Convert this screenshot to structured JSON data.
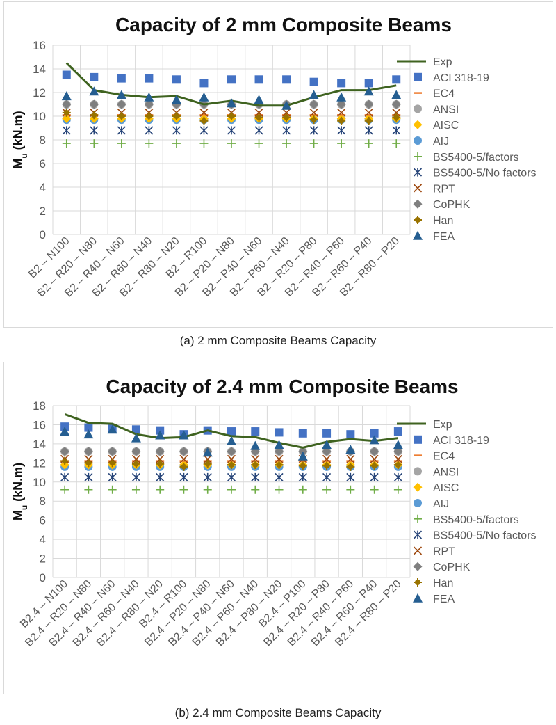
{
  "captions": {
    "a": "(a) 2 mm Composite Beams Capacity",
    "b": "(b) 2.4 mm Composite Beams Capacity"
  },
  "legend_styles": [
    {
      "name": "Exp",
      "marker": "line",
      "color": "#3f6320"
    },
    {
      "name": "ACI 318-19",
      "marker": "square",
      "color": "#4472c4"
    },
    {
      "name": "EC4",
      "marker": "dash",
      "color": "#ed7d31"
    },
    {
      "name": "ANSI",
      "marker": "circle",
      "color": "#a5a5a5"
    },
    {
      "name": "AISC",
      "marker": "diamond",
      "color": "#ffc000"
    },
    {
      "name": "AIJ",
      "marker": "circle",
      "color": "#5b9bd5"
    },
    {
      "name": "BS5400-5/factors",
      "marker": "plus",
      "color": "#70ad47"
    },
    {
      "name": "BS5400-5/No factors",
      "marker": "asterisk",
      "color": "#264478"
    },
    {
      "name": "RPT",
      "marker": "x",
      "color": "#9e480e"
    },
    {
      "name": "CoPHK",
      "marker": "diamond",
      "color": "#7f7f7f"
    },
    {
      "name": "Han",
      "marker": "plus-circle",
      "color": "#997300"
    },
    {
      "name": "FEA",
      "marker": "triangle",
      "color": "#255e91"
    }
  ],
  "chart_data": [
    {
      "type": "line",
      "title": "Capacity of 2 mm Composite Beams",
      "ylabel": "M",
      "ylabel_sub": "u",
      "ylabel_unit": " (kN.m)",
      "ylim": [
        0,
        16
      ],
      "yticks": [
        0,
        2,
        4,
        6,
        8,
        10,
        12,
        14,
        16
      ],
      "grid": true,
      "legend_position": "right",
      "categories": [
        "B2 – N100",
        "B2 – R20 – N80",
        "B2 – R40 – N60",
        "B2 – R60 – N40",
        "B2 – R80 – N20",
        "B2 – R100",
        "B2 – P20 – N80",
        "B2 – P40 – N60",
        "B2 – P60 – N40",
        "B2 – R20 – P80",
        "B2 – R40 – P60",
        "B2 – R60 – P40",
        "B2 – R80 – P20"
      ],
      "series": [
        {
          "name": "Exp",
          "values": [
            14.5,
            12.2,
            11.8,
            11.6,
            11.7,
            11.0,
            11.3,
            10.9,
            10.9,
            11.6,
            12.2,
            12.2,
            12.6
          ]
        },
        {
          "name": "ACI 318-19",
          "values": [
            13.5,
            13.3,
            13.2,
            13.2,
            13.1,
            12.8,
            13.1,
            13.1,
            13.1,
            12.9,
            12.8,
            12.8,
            13.1
          ]
        },
        {
          "name": "EC4",
          "values": [
            10.1,
            10.1,
            10.1,
            10.1,
            10.1,
            10.1,
            10.1,
            10.1,
            10.1,
            10.1,
            10.1,
            10.1,
            10.1
          ]
        },
        {
          "name": "ANSI",
          "values": [
            11.0,
            11.0,
            11.0,
            11.0,
            11.0,
            11.0,
            11.0,
            11.0,
            11.0,
            11.0,
            11.0,
            11.0,
            11.0
          ]
        },
        {
          "name": "AISC",
          "values": [
            9.8,
            9.8,
            9.8,
            9.8,
            9.8,
            9.8,
            9.8,
            9.8,
            9.8,
            9.8,
            9.8,
            9.8,
            9.8
          ]
        },
        {
          "name": "AIJ",
          "values": [
            9.7,
            9.7,
            9.7,
            9.7,
            9.7,
            9.7,
            9.7,
            9.7,
            9.7,
            9.7,
            9.7,
            9.7,
            9.7
          ]
        },
        {
          "name": "BS5400-5/factors",
          "values": [
            7.7,
            7.7,
            7.7,
            7.7,
            7.7,
            7.7,
            7.7,
            7.7,
            7.7,
            7.7,
            7.7,
            7.7,
            7.7
          ]
        },
        {
          "name": "BS5400-5/No factors",
          "values": [
            8.8,
            8.8,
            8.8,
            8.8,
            8.8,
            8.8,
            8.8,
            8.8,
            8.8,
            8.8,
            8.8,
            8.8,
            8.8
          ]
        },
        {
          "name": "RPT",
          "values": [
            10.3,
            10.3,
            10.3,
            10.3,
            10.3,
            10.3,
            10.3,
            10.3,
            10.3,
            10.3,
            10.3,
            10.3,
            10.3
          ]
        },
        {
          "name": "CoPHK",
          "values": [
            11.0,
            11.0,
            11.0,
            11.0,
            11.0,
            11.0,
            11.0,
            11.0,
            11.0,
            11.0,
            11.0,
            11.0,
            11.0
          ]
        },
        {
          "name": "Han",
          "values": [
            10.3,
            10.1,
            10.0,
            10.0,
            10.0,
            9.6,
            10.0,
            9.9,
            9.9,
            9.7,
            9.6,
            9.6,
            9.9
          ]
        },
        {
          "name": "FEA",
          "values": [
            11.7,
            12.1,
            11.8,
            11.6,
            11.4,
            11.6,
            11.1,
            11.4,
            10.9,
            11.8,
            11.6,
            12.1,
            11.8
          ]
        }
      ]
    },
    {
      "type": "line",
      "title": "Capacity of 2.4 mm Composite Beams",
      "ylabel": "M",
      "ylabel_sub": "u",
      "ylabel_unit": " (kN.m)",
      "ylim": [
        0,
        18
      ],
      "yticks": [
        0,
        2,
        4,
        6,
        8,
        10,
        12,
        14,
        16,
        18
      ],
      "grid": true,
      "legend_position": "right",
      "categories": [
        "B2.4 – N100",
        "B2.4 – R20 – N80",
        "B2.4 – R40 – N60",
        "B2.4 – R60 – N40",
        "B2.4 – R80 – N20",
        "B2.4 – R100",
        "B2.4 – P20 – N80",
        "B2.4 – P40 – N60",
        "B2.4 – P60 – N40",
        "B2.4 – P80 – N20",
        "B2.4 – P100",
        "B2.4 – R20 – P80",
        "B2.4 – R40 – P60",
        "B2.4 – R60 – P40",
        "B2.4 – R80 – P20"
      ],
      "series": [
        {
          "name": "Exp",
          "values": [
            17.1,
            16.2,
            16.1,
            15.0,
            14.6,
            14.7,
            15.4,
            14.8,
            14.7,
            14.1,
            13.6,
            14.2,
            14.5,
            14.3,
            14.6
          ]
        },
        {
          "name": "ACI 318-19",
          "values": [
            15.8,
            15.7,
            15.6,
            15.5,
            15.4,
            15.0,
            15.4,
            15.3,
            15.3,
            15.2,
            15.1,
            15.1,
            15.0,
            15.1,
            15.3
          ]
        },
        {
          "name": "EC4",
          "values": [
            12.2,
            12.2,
            12.2,
            12.2,
            12.2,
            12.2,
            12.2,
            12.2,
            12.2,
            12.2,
            12.2,
            12.2,
            12.2,
            12.2,
            12.2
          ]
        },
        {
          "name": "ANSI",
          "values": [
            13.2,
            13.2,
            13.2,
            13.2,
            13.2,
            13.2,
            13.2,
            13.2,
            13.2,
            13.2,
            13.2,
            13.2,
            13.2,
            13.2,
            13.2
          ]
        },
        {
          "name": "AISC",
          "values": [
            11.8,
            11.8,
            11.8,
            11.8,
            11.8,
            11.8,
            11.8,
            11.8,
            11.8,
            11.8,
            11.8,
            11.8,
            11.8,
            11.8,
            11.8
          ]
        },
        {
          "name": "AIJ",
          "values": [
            11.6,
            11.6,
            11.6,
            11.6,
            11.6,
            11.6,
            11.6,
            11.6,
            11.6,
            11.6,
            11.6,
            11.6,
            11.6,
            11.6,
            11.6
          ]
        },
        {
          "name": "BS5400-5/factors",
          "values": [
            9.2,
            9.2,
            9.2,
            9.2,
            9.2,
            9.2,
            9.2,
            9.2,
            9.2,
            9.2,
            9.2,
            9.2,
            9.2,
            9.2,
            9.2
          ]
        },
        {
          "name": "BS5400-5/No factors",
          "values": [
            10.5,
            10.5,
            10.5,
            10.5,
            10.5,
            10.5,
            10.5,
            10.5,
            10.5,
            10.5,
            10.5,
            10.5,
            10.5,
            10.5,
            10.5
          ]
        },
        {
          "name": "RPT",
          "values": [
            12.4,
            12.4,
            12.4,
            12.4,
            12.4,
            12.4,
            12.4,
            12.4,
            12.4,
            12.4,
            12.4,
            12.4,
            12.4,
            12.4,
            12.4
          ]
        },
        {
          "name": "CoPHK",
          "values": [
            13.2,
            13.2,
            13.2,
            13.2,
            13.2,
            13.2,
            13.2,
            13.2,
            13.2,
            13.2,
            13.2,
            13.2,
            13.2,
            13.2,
            13.2
          ]
        },
        {
          "name": "Han",
          "values": [
            12.2,
            12.0,
            12.0,
            11.9,
            11.9,
            11.6,
            11.9,
            11.8,
            11.8,
            11.8,
            11.7,
            11.7,
            11.6,
            11.7,
            11.8
          ]
        },
        {
          "name": "FEA",
          "values": [
            15.3,
            15.0,
            15.5,
            14.6,
            14.9,
            14.9,
            13.1,
            14.3,
            13.8,
            13.9,
            12.7,
            13.9,
            13.4,
            14.4,
            13.9
          ]
        }
      ]
    }
  ]
}
